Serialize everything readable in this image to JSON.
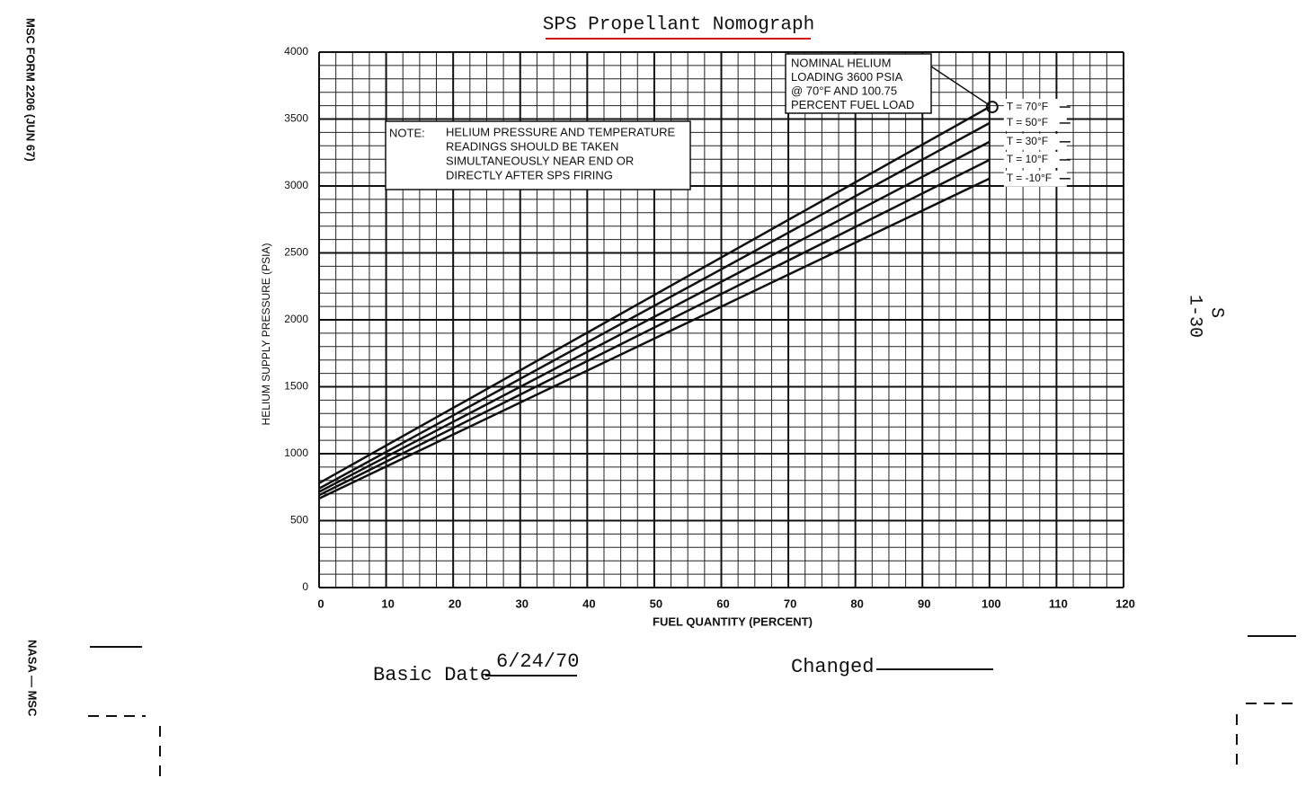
{
  "chart_data": {
    "type": "line",
    "title": "SPS Propellant Nomograph",
    "x_label": "FUEL QUANTITY (PERCENT)",
    "y_label": "HELIUM SUPPLY PRESSURE (PSIA)",
    "x": [
      0,
      100
    ],
    "series": [
      {
        "name": "T = 70°F",
        "color": "#111111",
        "values": [
          780,
          3590
        ]
      },
      {
        "name": "T = 50°F",
        "color": "#111111",
        "values": [
          740,
          3470
        ]
      },
      {
        "name": "T = 30°F",
        "color": "#111111",
        "values": [
          715,
          3330
        ]
      },
      {
        "name": "T = 10°F",
        "color": "#111111",
        "values": [
          690,
          3195
        ]
      },
      {
        "name": "T = -10°F",
        "color": "#111111",
        "values": [
          665,
          3055
        ]
      }
    ],
    "xlim": [
      0,
      120
    ],
    "xticks": [
      0,
      10,
      20,
      30,
      40,
      50,
      60,
      70,
      80,
      90,
      100,
      110,
      120
    ],
    "ylim": [
      0,
      4000
    ],
    "yticks": [
      0,
      500,
      1000,
      1500,
      2000,
      2500,
      3000,
      3500,
      4000
    ],
    "grid": true,
    "annotations": {
      "note_label": "NOTE:",
      "note_lines": [
        "HELIUM PRESSURE AND TEMPERATURE",
        "READINGS SHOULD BE TAKEN",
        "SIMULTANEOUSLY NEAR END OR",
        "DIRECTLY AFTER SPS FIRING"
      ],
      "nominal_lines": [
        "NOMINAL HELIUM",
        "LOADING 3600 PSIA",
        "@ 70°F AND 100.75",
        "PERCENT FUEL LOAD"
      ]
    }
  },
  "document": {
    "form": "MSC FORM 2206 (JUN 67)",
    "agency": "NASA — MSC",
    "section": "S",
    "page": "1-30",
    "basic_date_label": "Basic Date",
    "basic_date": "6/24/70",
    "changed_label": "Changed"
  }
}
